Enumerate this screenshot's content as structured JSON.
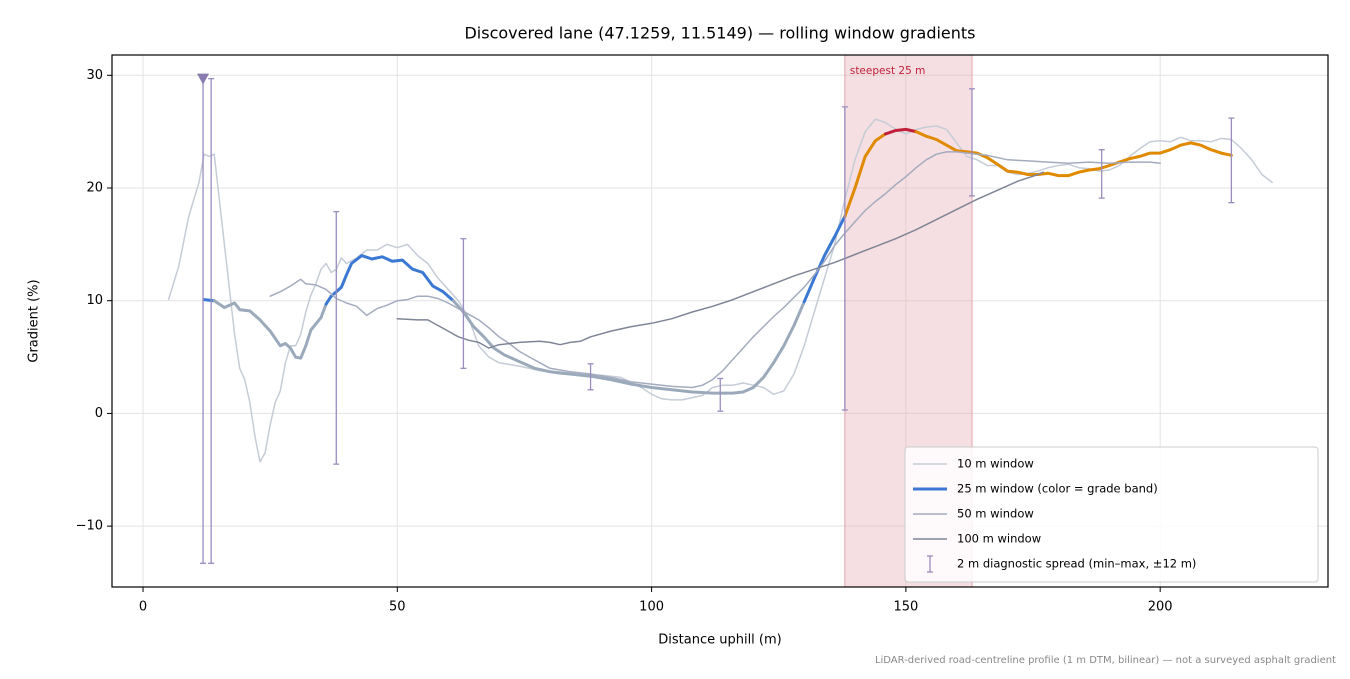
{
  "chart_data": {
    "type": "line",
    "title": "Discovered lane (47.1259, 11.5149) — rolling window gradients",
    "xlabel": "Distance uphill (m)",
    "ylabel": "Gradient (%)",
    "note": "LiDAR-derived road-centreline profile (1 m DTM, bilinear) — not a surveyed asphalt gradient",
    "xlim": [
      -6.1,
      233
    ],
    "ylim": [
      -15.4,
      31.8
    ],
    "xticks": [
      0,
      50,
      100,
      150,
      200
    ],
    "yticks": [
      {
        "value": -10,
        "label": "−10"
      },
      0,
      10,
      20,
      30
    ],
    "grid": true,
    "legend": "lower right",
    "highlight": {
      "x": [
        138,
        163
      ],
      "label": "steepest 25 m",
      "color": "#e3a3ad",
      "label_color": "#c0203a"
    },
    "series": [
      {
        "name": "10 m window",
        "color": "#c5ccd6",
        "width": 1.5,
        "x": [
          5,
          7,
          9,
          11,
          12,
          13,
          14,
          15,
          16,
          17,
          18,
          19,
          20,
          21,
          22,
          23,
          24,
          25,
          26,
          27,
          28,
          29,
          30,
          31,
          32,
          33,
          34,
          35,
          36,
          37,
          38,
          39,
          40,
          42,
          44,
          46,
          48,
          50,
          52,
          54,
          56,
          58,
          60,
          62,
          64,
          66,
          68,
          70,
          74,
          78,
          82,
          86,
          90,
          94,
          98,
          100,
          102,
          104,
          106,
          108,
          110,
          112,
          114,
          116,
          118,
          120,
          122,
          124,
          126,
          128,
          130,
          132,
          134,
          136,
          138,
          140,
          142,
          144,
          146,
          148,
          150,
          152,
          154,
          156,
          158,
          160,
          162,
          164,
          166,
          168,
          170,
          172,
          174,
          176,
          178,
          180,
          182,
          184,
          186,
          188,
          190,
          192,
          194,
          196,
          198,
          200,
          202,
          204,
          206,
          208,
          210,
          212,
          214,
          216,
          218,
          220,
          222
        ],
        "values": [
          10.1,
          13,
          17.5,
          20.5,
          23,
          22.8,
          23,
          19,
          15,
          11,
          7,
          4,
          3,
          1,
          -2,
          -4.3,
          -3.5,
          -1,
          1,
          2,
          4.5,
          6,
          6,
          7,
          9,
          10.5,
          11.5,
          12.8,
          13.3,
          12.5,
          12.8,
          13.8,
          13.3,
          13.8,
          14.5,
          14.5,
          15,
          14.7,
          15,
          14,
          13.3,
          12,
          11,
          10,
          8.5,
          6,
          5,
          4.5,
          4.2,
          3.8,
          3.5,
          3.4,
          3.4,
          3.2,
          2.3,
          1.7,
          1.3,
          1.2,
          1.2,
          1.4,
          1.6,
          2.3,
          2.5,
          2.5,
          2.7,
          2.5,
          2.3,
          1.7,
          2,
          3.5,
          6,
          9,
          12,
          15,
          19,
          22.5,
          25,
          26.1,
          25.8,
          25.2,
          24.8,
          25.2,
          25.4,
          25.5,
          25.2,
          24,
          22.8,
          22.5,
          22,
          22,
          21.4,
          21.2,
          21.3,
          21.5,
          21.8,
          22,
          22.1,
          21.8,
          21.7,
          21.5,
          21.6,
          22,
          22.8,
          23.5,
          24.1,
          24.2,
          24.1,
          24.5,
          24.2,
          24.2,
          24.1,
          24.4,
          24.3,
          23.5,
          22.5,
          21.2,
          20.5
        ]
      },
      {
        "name": "25 m window (color = grade band)",
        "color": "#3a78d4",
        "width": 3,
        "color_bands": [
          {
            "below": 10,
            "color": "#9aaabb"
          },
          {
            "below": 20,
            "color": "#3a78d4"
          },
          {
            "below": 25,
            "color": "#e08a00"
          },
          {
            "color": "#c0203a"
          }
        ],
        "x": [
          12,
          14,
          16,
          18,
          19,
          21,
          23,
          25,
          27,
          28,
          29,
          30,
          31,
          32,
          33,
          35,
          36,
          37,
          39,
          40,
          41,
          43,
          45,
          47,
          49,
          51,
          53,
          55,
          57,
          59,
          61,
          63,
          65,
          67,
          69,
          71,
          74,
          77,
          80,
          84,
          88,
          92,
          96,
          100,
          104,
          108,
          112,
          116,
          118,
          120,
          122,
          124,
          126,
          128,
          130,
          132,
          134,
          136,
          138,
          140,
          142,
          144,
          146,
          148,
          150,
          152,
          154,
          156,
          158,
          160,
          162,
          164,
          166,
          168,
          170,
          172,
          174,
          176,
          178,
          180,
          182,
          184,
          186,
          188,
          190,
          192,
          194,
          196,
          198,
          200,
          202,
          204,
          206,
          208,
          210,
          212,
          214
        ],
        "values": [
          10.1,
          10,
          9.4,
          9.8,
          9.2,
          9.1,
          8.3,
          7.3,
          6,
          6.2,
          5.8,
          5,
          4.9,
          6,
          7.4,
          8.5,
          9.7,
          10.4,
          11.2,
          12.3,
          13.3,
          14,
          13.7,
          13.9,
          13.5,
          13.6,
          12.8,
          12.5,
          11.3,
          10.8,
          10,
          9,
          7.7,
          6.8,
          5.8,
          5.2,
          4.6,
          4,
          3.7,
          3.5,
          3.3,
          3,
          2.6,
          2.3,
          2.1,
          1.9,
          1.8,
          1.8,
          1.9,
          2.3,
          3.2,
          4.5,
          6,
          7.8,
          9.9,
          12,
          14,
          15.7,
          17.5,
          20,
          22.8,
          24.2,
          24.8,
          25.1,
          25.2,
          25,
          24.6,
          24.3,
          23.8,
          23.3,
          23.2,
          23.1,
          22.7,
          22.1,
          21.5,
          21.4,
          21.2,
          21.2,
          21.3,
          21.1,
          21.1,
          21.4,
          21.6,
          21.7,
          22,
          22.3,
          22.6,
          22.8,
          23.1,
          23.1,
          23.4,
          23.8,
          24,
          23.8,
          23.4,
          23.1,
          22.9
        ]
      },
      {
        "name": "50 m window",
        "color": "#a4abbf",
        "width": 1.5,
        "x": [
          25,
          27,
          29,
          31,
          32,
          34,
          36,
          38,
          40,
          42,
          44,
          46,
          48,
          50,
          52,
          54,
          56,
          58,
          60,
          62,
          64,
          66,
          68,
          70,
          72,
          74,
          76,
          78,
          80,
          84,
          88,
          92,
          96,
          100,
          104,
          108,
          110,
          112,
          114,
          116,
          118,
          120,
          122,
          124,
          126,
          128,
          130,
          132,
          134,
          136,
          138,
          140,
          142,
          144,
          146,
          148,
          150,
          152,
          154,
          156,
          158,
          160,
          164,
          166,
          170,
          174,
          178,
          182,
          186,
          190,
          194,
          198,
          200
        ],
        "values": [
          10.4,
          10.8,
          11.3,
          11.9,
          11.5,
          11.4,
          11,
          10.2,
          9.8,
          9.5,
          8.7,
          9.3,
          9.6,
          10,
          10.1,
          10.4,
          10.4,
          10.2,
          9.8,
          9.3,
          8.8,
          8.3,
          7.6,
          6.8,
          6.2,
          5.5,
          5,
          4.5,
          4,
          3.7,
          3.5,
          3.2,
          2.8,
          2.6,
          2.4,
          2.3,
          2.5,
          3,
          3.8,
          4.8,
          5.8,
          6.8,
          7.7,
          8.6,
          9.4,
          10.3,
          11.2,
          12.3,
          13.5,
          14.9,
          16,
          17,
          18,
          18.8,
          19.5,
          20.3,
          21,
          21.8,
          22.5,
          23,
          23.2,
          23.2,
          23,
          22.9,
          22.5,
          22.4,
          22.3,
          22.2,
          22.3,
          22.2,
          22.3,
          22.3,
          22.2
        ]
      },
      {
        "name": "100 m window",
        "color": "#7f8596",
        "width": 1.5,
        "x": [
          50,
          54,
          56,
          58,
          60,
          62,
          64,
          66,
          68,
          70,
          74,
          78,
          80,
          82,
          84,
          86,
          88,
          92,
          96,
          100,
          104,
          108,
          112,
          116,
          120,
          124,
          128,
          132,
          136,
          140,
          144,
          148,
          152,
          156,
          160,
          164,
          168,
          172,
          176,
          177
        ],
        "values": [
          8.4,
          8.3,
          8.3,
          7.8,
          7.3,
          6.8,
          6.5,
          6.3,
          5.8,
          6.1,
          6.3,
          6.4,
          6.3,
          6.1,
          6.3,
          6.4,
          6.8,
          7.3,
          7.7,
          8,
          8.4,
          9,
          9.5,
          10.1,
          10.8,
          11.5,
          12.2,
          12.8,
          13.4,
          14.1,
          14.8,
          15.5,
          16.3,
          17.2,
          18.1,
          19,
          19.8,
          20.6,
          21.2,
          21.4
        ]
      }
    ],
    "errorbars": {
      "name": "2 m diagnostic spread (min–max, ±12 m)",
      "color": "#9a8cbf",
      "x": [
        11.8,
        13.4,
        38,
        63,
        88,
        113.5,
        138,
        163,
        188.5,
        214
      ],
      "low": [
        -13.3,
        -13.3,
        -4.5,
        4,
        2.1,
        0.2,
        0.3,
        19.3,
        19.1,
        18.7
      ],
      "high": [
        29.7,
        29.7,
        17.9,
        15.5,
        4.4,
        3.1,
        27.2,
        28.8,
        23.4,
        26.2
      ]
    },
    "peak_marker": {
      "x": 11.8,
      "y": 29.7,
      "color": "#8a7bb0"
    }
  }
}
